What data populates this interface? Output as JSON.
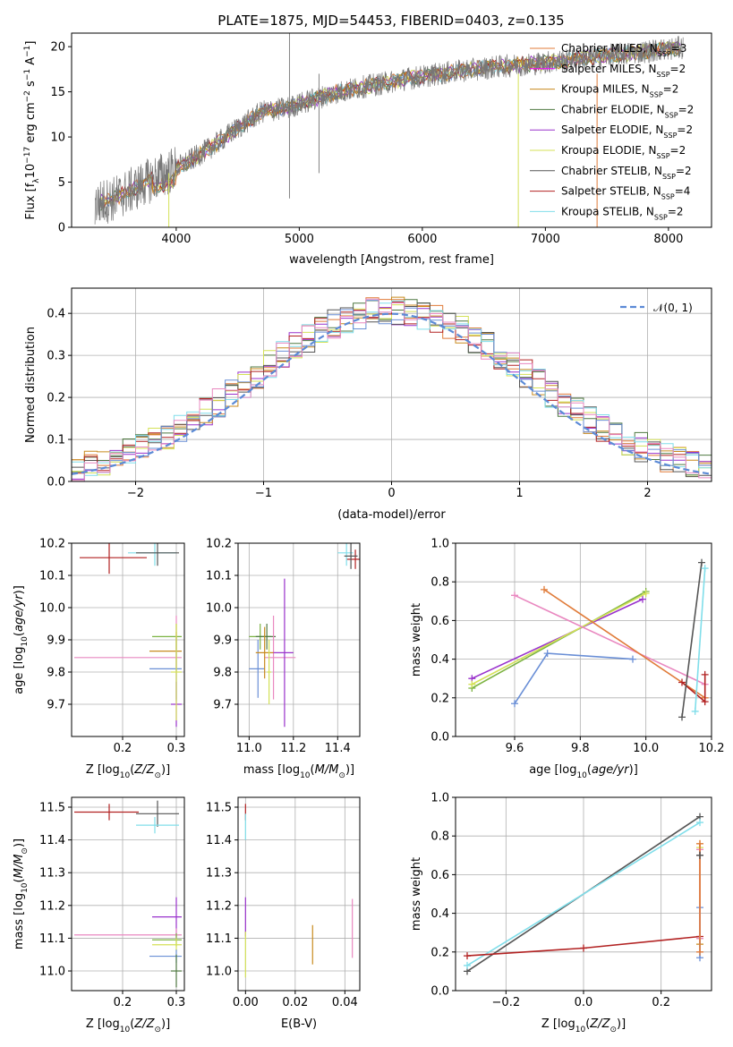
{
  "figure_title": "PLATE=1875, MJD=54453, FIBERID=0403, z=0.135",
  "colors": [
    "#e07b39",
    "#ff00ff",
    "#c88a1e",
    "#4f7942",
    "#9932cc",
    "#d4e157",
    "#555555",
    "#b22222",
    "#80deea",
    "#6a8fd6",
    "#e988c0",
    "#7cb342"
  ],
  "chart_data": [
    {
      "type": "line",
      "xlabel": "wavelength [Angstrom, rest frame]",
      "ylabel": "Flux [f_λ 10^-17 erg cm^-2 s^-1 A^-1]",
      "xlim": [
        3150,
        8350
      ],
      "ylim": [
        0,
        21.5
      ],
      "xticks": [
        4000,
        5000,
        6000,
        7000,
        8000
      ],
      "yticks": [
        0,
        5,
        10,
        15,
        20
      ],
      "grid": false,
      "legend_placement": "right",
      "series": [
        {
          "name": "Chabrier MILES, N_SSP=3"
        },
        {
          "name": "Salpeter MILES, N_SSP=2"
        },
        {
          "name": "Kroupa MILES, N_SSP=2"
        },
        {
          "name": "Chabrier ELODIE, N_SSP=2"
        },
        {
          "name": "Salpeter ELODIE, N_SSP=2"
        },
        {
          "name": "Kroupa ELODIE, N_SSP=2"
        },
        {
          "name": "Chabrier STELIB, N_SSP=2"
        },
        {
          "name": "Salpeter STELIB, N_SSP=4"
        },
        {
          "name": "Kroupa STELIB, N_SSP=2"
        }
      ],
      "continuum_x": [
        3350,
        3500,
        3650,
        3800,
        3950,
        4100,
        4300,
        4500,
        4700,
        4900,
        5100,
        5300,
        5500,
        5700,
        5900,
        6100,
        6300,
        6500,
        6700,
        6900,
        7100,
        7300,
        7500,
        7700,
        7900,
        8100
      ],
      "continuum_y": [
        2.6,
        3.2,
        4.2,
        5.3,
        6.2,
        7.3,
        9.0,
        11.0,
        12.8,
        13.2,
        14.1,
        14.9,
        15.5,
        16.0,
        16.5,
        16.9,
        17.3,
        17.6,
        17.9,
        18.1,
        18.4,
        18.7,
        19.0,
        19.3,
        19.6,
        19.9
      ]
    },
    {
      "type": "line",
      "xlabel": "(data-model)/error",
      "ylabel": "Normed distribution",
      "xlim": [
        -2.5,
        2.5
      ],
      "ylim": [
        0,
        0.46
      ],
      "xticks": [
        -2,
        -1,
        0,
        1,
        2
      ],
      "yticks": [
        0.0,
        0.1,
        0.2,
        0.3,
        0.4
      ],
      "grid": true,
      "legend_placement": "top-right",
      "legend": [
        "𝒩(0, 1)"
      ],
      "bin_width": 0.1
    },
    {
      "type": "scatter",
      "xlabel": "Z [log10(Z/Z⊙)]",
      "ylabel": "age  [log10(age/yr)]",
      "xlim": [
        0.105,
        0.315
      ],
      "ylim": [
        9.6,
        10.2
      ],
      "xticks": [
        0.2,
        0.3
      ],
      "yticks": [
        9.7,
        9.8,
        9.9,
        10.0,
        10.1,
        10.2
      ],
      "grid": true,
      "points": [
        {
          "c": 7,
          "x": 0.175,
          "y": 10.155,
          "xerr": [
            0.055,
            0.07
          ],
          "yerr": 0.05
        },
        {
          "c": 8,
          "x": 0.26,
          "y": 10.17,
          "xerr": [
            0.05,
            0.04
          ],
          "yerr": 0.04
        },
        {
          "c": 6,
          "x": 0.265,
          "y": 10.17,
          "xerr": [
            0.04,
            0.04
          ],
          "yerr": 0.04
        },
        {
          "c": 11,
          "x": 0.3,
          "y": 9.91,
          "xerr": [
            0.045,
            0.01
          ],
          "yerr": 0.04
        },
        {
          "c": 10,
          "x": 0.3,
          "y": 9.845,
          "xerr": [
            0.19,
            0.01
          ],
          "yerr": 0.13
        },
        {
          "c": 2,
          "x": 0.3,
          "y": 9.865,
          "xerr": [
            0.05,
            0.01
          ],
          "yerr": 0.06
        },
        {
          "c": 9,
          "x": 0.3,
          "y": 9.81,
          "xerr": [
            0.05,
            0.01
          ],
          "yerr": 0.1
        },
        {
          "c": 4,
          "x": 0.3,
          "y": 9.7,
          "xerr": [
            0.01,
            0.01
          ],
          "yerr": 0.07
        },
        {
          "c": 5,
          "x": 0.3,
          "y": 9.8,
          "xerr": [
            0.01,
            0.01
          ],
          "yerr": 0.15
        }
      ]
    },
    {
      "type": "scatter",
      "xlabel": "mass [log10(M/M⊙)]",
      "ylabel": "",
      "xlim": [
        10.95,
        11.5
      ],
      "ylim": [
        9.6,
        10.2
      ],
      "xticks": [
        11.0,
        11.2,
        11.4
      ],
      "yticks": [
        9.7,
        9.8,
        9.9,
        10.0,
        10.1,
        10.2
      ],
      "grid": true,
      "points": [
        {
          "c": 7,
          "x": 11.48,
          "y": 10.15,
          "xerr": [
            0.04,
            0.02
          ],
          "yerr": 0.03
        },
        {
          "c": 8,
          "x": 11.44,
          "y": 10.17,
          "xerr": [
            0.04,
            0.03
          ],
          "yerr": 0.04
        },
        {
          "c": 6,
          "x": 11.46,
          "y": 10.16,
          "xerr": [
            0.03,
            0.03
          ],
          "yerr": 0.04
        },
        {
          "c": 11,
          "x": 11.05,
          "y": 9.91,
          "xerr": [
            0.05,
            0.05
          ],
          "yerr": 0.04
        },
        {
          "c": 3,
          "x": 11.08,
          "y": 9.91,
          "xerr": [
            0.05,
            0.04
          ],
          "yerr": 0.04
        },
        {
          "c": 10,
          "x": 11.11,
          "y": 9.845,
          "xerr": [
            0.04,
            0.1
          ],
          "yerr": 0.13
        },
        {
          "c": 4,
          "x": 11.16,
          "y": 9.86,
          "xerr": [
            0.05,
            0.04
          ],
          "yerr": 0.23
        },
        {
          "c": 9,
          "x": 11.04,
          "y": 9.81,
          "xerr": [
            0.04,
            0.03
          ],
          "yerr": 0.09
        },
        {
          "c": 2,
          "x": 11.07,
          "y": 9.86,
          "xerr": [
            0.04,
            0.04
          ],
          "yerr": 0.08
        },
        {
          "c": 5,
          "x": 11.09,
          "y": 9.8,
          "xerr": [
            0.01,
            0.01
          ],
          "yerr": 0.1
        }
      ]
    },
    {
      "type": "line",
      "xlabel": "age  [log10(age/yr)]",
      "ylabel": "mass weight",
      "xlim": [
        9.42,
        10.2
      ],
      "ylim": [
        0,
        1.0
      ],
      "xticks": [
        9.6,
        9.8,
        10.0,
        10.2
      ],
      "yticks": [
        0.0,
        0.2,
        0.4,
        0.6,
        0.8,
        1.0
      ],
      "grid": true,
      "series": [
        {
          "c": 4,
          "x": [
            9.47,
            9.99
          ],
          "y": [
            0.3,
            0.71
          ]
        },
        {
          "c": 11,
          "x": [
            9.47,
            10.0
          ],
          "y": [
            0.25,
            0.75
          ]
        },
        {
          "c": 5,
          "x": [
            9.47,
            10.0
          ],
          "y": [
            0.27,
            0.74
          ]
        },
        {
          "c": 9,
          "x": [
            9.6,
            9.7,
            9.96
          ],
          "y": [
            0.17,
            0.43,
            0.4
          ]
        },
        {
          "c": 10,
          "x": [
            9.6,
            10.18
          ],
          "y": [
            0.73,
            0.27
          ]
        },
        {
          "c": 0,
          "x": [
            9.69,
            10.18
          ],
          "y": [
            0.76,
            0.2
          ]
        },
        {
          "c": 7,
          "x": [
            10.11,
            10.18,
            10.18
          ],
          "y": [
            0.28,
            0.18,
            0.32
          ]
        },
        {
          "c": 6,
          "x": [
            10.11,
            10.17
          ],
          "y": [
            0.1,
            0.9
          ]
        },
        {
          "c": 8,
          "x": [
            10.15,
            10.18
          ],
          "y": [
            0.13,
            0.87
          ]
        }
      ]
    },
    {
      "type": "scatter",
      "xlabel": "Z [log10(Z/Z⊙)]",
      "ylabel": "mass [log10(M/M⊙)]",
      "xlim": [
        0.105,
        0.315
      ],
      "ylim": [
        10.94,
        11.53
      ],
      "xticks": [
        0.2,
        0.3
      ],
      "yticks": [
        11.0,
        11.1,
        11.2,
        11.3,
        11.4,
        11.5
      ],
      "grid": true,
      "points": [
        {
          "c": 7,
          "x": 0.175,
          "y": 11.485,
          "xerr": [
            0.065,
            0.055
          ],
          "yerr": 0.025
        },
        {
          "c": 6,
          "x": 0.265,
          "y": 11.48,
          "xerr": [
            0.04,
            0.04
          ],
          "yerr": 0.04
        },
        {
          "c": 8,
          "x": 0.26,
          "y": 11.445,
          "xerr": [
            0.035,
            0.045
          ],
          "yerr": 0.025
        },
        {
          "c": 4,
          "x": 0.3,
          "y": 11.165,
          "xerr": [
            0.045,
            0.01
          ],
          "yerr": 0.06
        },
        {
          "c": 10,
          "x": 0.3,
          "y": 11.11,
          "xerr": [
            0.19,
            0.01
          ],
          "yerr": 0.02
        },
        {
          "c": 11,
          "x": 0.3,
          "y": 11.095,
          "xerr": [
            0.045,
            0.01
          ],
          "yerr": 0.02
        },
        {
          "c": 5,
          "x": 0.3,
          "y": 11.08,
          "xerr": [
            0.045,
            0.01
          ],
          "yerr": 0.02
        },
        {
          "c": 9,
          "x": 0.3,
          "y": 11.045,
          "xerr": [
            0.05,
            0.01
          ],
          "yerr": 0.02
        },
        {
          "c": 3,
          "x": 0.3,
          "y": 11.0,
          "xerr": [
            0.01,
            0.01
          ],
          "yerr": 0.05
        }
      ]
    },
    {
      "type": "scatter",
      "xlabel": "E(B-V)",
      "ylabel": "",
      "xlim": [
        -0.003,
        0.046
      ],
      "ylim": [
        10.94,
        11.53
      ],
      "xticks": [
        0.0,
        0.02,
        0.04
      ],
      "yticks": [
        11.0,
        11.1,
        11.2,
        11.3,
        11.4,
        11.5
      ],
      "grid": true,
      "points": [
        {
          "c": 7,
          "x": 0.0,
          "y": 11.485,
          "yerr": 0.025
        },
        {
          "c": 8,
          "x": 0.0,
          "y": 11.44,
          "yerr": 0.04
        },
        {
          "c": 4,
          "x": 0.0,
          "y": 11.165,
          "yerr": 0.06
        },
        {
          "c": 5,
          "x": 0.0,
          "y": 11.05,
          "yerr": 0.07
        },
        {
          "c": 2,
          "x": 0.027,
          "y": 11.08,
          "yerr": 0.06
        },
        {
          "c": 10,
          "x": 0.043,
          "y": 11.13,
          "yerr": 0.09
        }
      ]
    },
    {
      "type": "line",
      "xlabel": "Z [log10(Z/Z⊙)]",
      "ylabel": "mass weight",
      "xlim": [
        -0.33,
        0.33
      ],
      "ylim": [
        0,
        1.0
      ],
      "xticks": [
        -0.2,
        0.0,
        0.2
      ],
      "yticks": [
        0.0,
        0.2,
        0.4,
        0.6,
        0.8,
        1.0
      ],
      "grid": true,
      "series": [
        {
          "c": 6,
          "x": [
            -0.3,
            0.3
          ],
          "y": [
            0.1,
            0.9
          ]
        },
        {
          "c": 8,
          "x": [
            -0.3,
            0.3
          ],
          "y": [
            0.13,
            0.87
          ]
        },
        {
          "c": 7,
          "x": [
            -0.3,
            0.0,
            0.3
          ],
          "y": [
            0.18,
            0.22,
            0.28
          ]
        },
        {
          "c": 5,
          "x": [
            0.3,
            0.3
          ],
          "y": [
            0.27,
            0.74
          ]
        },
        {
          "c": 2,
          "x": [
            0.3,
            0.3
          ],
          "y": [
            0.24,
            0.76
          ]
        },
        {
          "c": 9,
          "x": [
            0.3,
            0.3
          ],
          "y": [
            0.17,
            0.43
          ]
        },
        {
          "c": 10,
          "x": [
            0.3,
            0.3
          ],
          "y": [
            0.27,
            0.73
          ]
        },
        {
          "c": 0,
          "x": [
            0.3,
            0.3
          ],
          "y": [
            0.2,
            0.76
          ]
        },
        {
          "c": 6,
          "x": [
            0.3,
            0.3
          ],
          "y": [
            0.7,
            0.7
          ]
        }
      ]
    }
  ]
}
